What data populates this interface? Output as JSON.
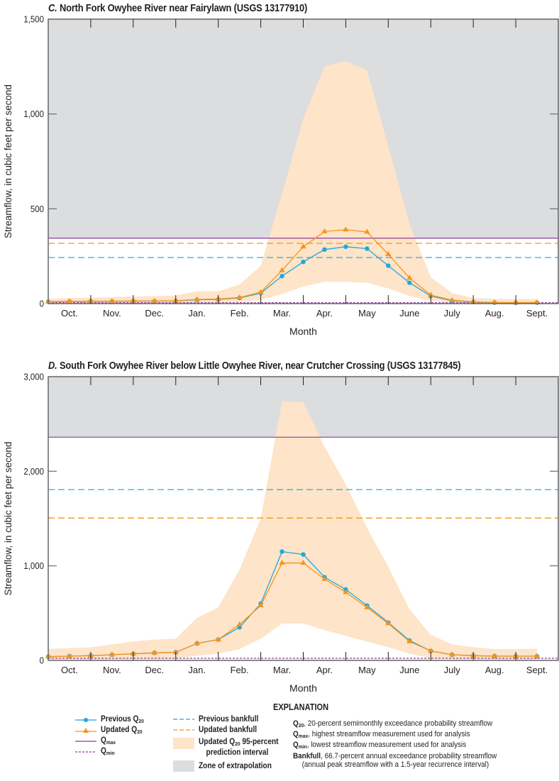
{
  "colors": {
    "previous": "#1fa8df",
    "updated": "#f7941d",
    "qmax": "#8e3a9e",
    "qmin": "#8e3a9e",
    "interval": "#fee4c8",
    "extrapolation": "#dcdddf",
    "axis": "#6d6e70"
  },
  "chart_data": [
    {
      "type": "line",
      "panel_letter": "C.",
      "title": "North Fork Owyhee River near Fairylawn (USGS 13177910)",
      "xlabel": "Month",
      "ylabel": "Streamflow, in cubic feet per second",
      "ylim": [
        0,
        1500
      ],
      "yticks": [
        0,
        500,
        1000,
        1500
      ],
      "ytick_labels": [
        "0",
        "500",
        "1,000",
        "1,500"
      ],
      "month_labels": [
        "Oct.",
        "Nov.",
        "Dec.",
        "Jan.",
        "Feb.",
        "Mar.",
        "Apr.",
        "May",
        "June",
        "July",
        "Aug.",
        "Sept."
      ],
      "x": [
        0,
        0.5,
        1,
        1.5,
        2,
        2.5,
        3,
        3.5,
        4,
        4.5,
        5,
        5.5,
        6,
        6.5,
        7,
        7.5,
        8,
        8.5,
        9,
        9.5,
        10,
        10.5,
        11,
        11.5
      ],
      "series": [
        {
          "name": "Previous Q20",
          "values": [
            10,
            11,
            12,
            12,
            13,
            13,
            14,
            20,
            22,
            30,
            55,
            145,
            220,
            285,
            300,
            290,
            200,
            110,
            40,
            15,
            8,
            5,
            4,
            5
          ]
        },
        {
          "name": "Updated Q20",
          "values": [
            10,
            12,
            13,
            13,
            14,
            14,
            15,
            22,
            24,
            32,
            60,
            175,
            300,
            380,
            390,
            378,
            260,
            135,
            45,
            18,
            9,
            6,
            5,
            6
          ]
        }
      ],
      "interval_upper": [
        25,
        30,
        32,
        34,
        38,
        40,
        42,
        65,
        65,
        100,
        200,
        580,
        975,
        1250,
        1280,
        1230,
        830,
        420,
        140,
        55,
        30,
        25,
        25,
        25
      ],
      "interval_lower": [
        2,
        2,
        3,
        3,
        3,
        3,
        4,
        5,
        8,
        10,
        20,
        50,
        90,
        115,
        115,
        110,
        80,
        40,
        15,
        5,
        3,
        2,
        2,
        2
      ],
      "qmax": 345,
      "qmin": 1,
      "previous_bankfull": 243,
      "updated_bankfull": 318,
      "extrapolation_above": 345
    },
    {
      "type": "line",
      "panel_letter": "D.",
      "title": "South Fork Owyhee River below Little Owyhee River, near Crutcher Crossing (USGS 13177845)",
      "xlabel": "Month",
      "ylabel": "Streamflow, in cubic feet per second",
      "ylim": [
        0,
        3000
      ],
      "yticks": [
        0,
        1000,
        2000,
        3000
      ],
      "ytick_labels": [
        "0",
        "1,000",
        "2,000",
        "3,000"
      ],
      "month_labels": [
        "Oct.",
        "Nov.",
        "Dec.",
        "Jan.",
        "Feb.",
        "Mar.",
        "Apr.",
        "May",
        "June",
        "July",
        "Aug.",
        "Sept."
      ],
      "x": [
        0,
        0.5,
        1,
        1.5,
        2,
        2.5,
        3,
        3.5,
        4,
        4.5,
        5,
        5.5,
        6,
        6.5,
        7,
        7.5,
        8,
        8.5,
        9,
        9.5,
        10,
        10.5,
        11,
        11.5
      ],
      "series": [
        {
          "name": "Previous Q20",
          "values": [
            40,
            45,
            50,
            60,
            70,
            80,
            85,
            180,
            220,
            350,
            600,
            1150,
            1120,
            880,
            750,
            580,
            400,
            210,
            100,
            60,
            50,
            45,
            45,
            45
          ]
        },
        {
          "name": "Updated Q20",
          "values": [
            40,
            45,
            50,
            60,
            70,
            80,
            85,
            180,
            220,
            380,
            580,
            1030,
            1030,
            860,
            720,
            560,
            390,
            200,
            100,
            60,
            50,
            45,
            45,
            45
          ]
        }
      ],
      "interval_upper": [
        120,
        130,
        140,
        170,
        200,
        220,
        230,
        450,
        560,
        960,
        1500,
        2740,
        2730,
        2260,
        1860,
        1400,
        990,
        540,
        270,
        170,
        140,
        120,
        120,
        125
      ],
      "interval_lower": [
        10,
        10,
        10,
        12,
        15,
        15,
        20,
        50,
        70,
        120,
        230,
        390,
        390,
        320,
        260,
        200,
        140,
        70,
        25,
        15,
        12,
        10,
        10,
        10
      ],
      "qmax": 2360,
      "qmin": 15,
      "previous_bankfull": 1805,
      "updated_bankfull": 1505,
      "extrapolation_above": 2360
    }
  ],
  "legend": {
    "heading": "EXPLANATION",
    "previous_q20": {
      "text": "Previous Q",
      "sub": "20"
    },
    "updated_q20": {
      "text": "Updated Q",
      "sub": "20"
    },
    "qmax": {
      "text": "Q",
      "sub": "max"
    },
    "qmin": {
      "text": "Q",
      "sub": "min"
    },
    "previous_bankfull": "Previous bankfull",
    "updated_bankfull": "Updated bankfull",
    "interval": {
      "pre": "Updated Q",
      "sub": "20",
      "post": " 95-percent",
      "line2": "prediction interval"
    },
    "extrapolation": "Zone of extrapolation",
    "definitions": [
      {
        "term": "Q",
        "sub": "20",
        "text": ", 20-percent semimonthly exceedance probability streamflow"
      },
      {
        "term": "Q",
        "sub": "max",
        "text": ", highest streamflow measurement used for analysis"
      },
      {
        "term": "Q",
        "sub": "min",
        "text": ", lowest streamflow measurement used for analysis"
      },
      {
        "term": "Bankfull",
        "sub": "",
        "text": ", 66.7-percent annual exceedance probability streamflow"
      }
    ],
    "definition_continuation": "(annual peak streamflow with a 1.5-year recurrence interval)"
  }
}
